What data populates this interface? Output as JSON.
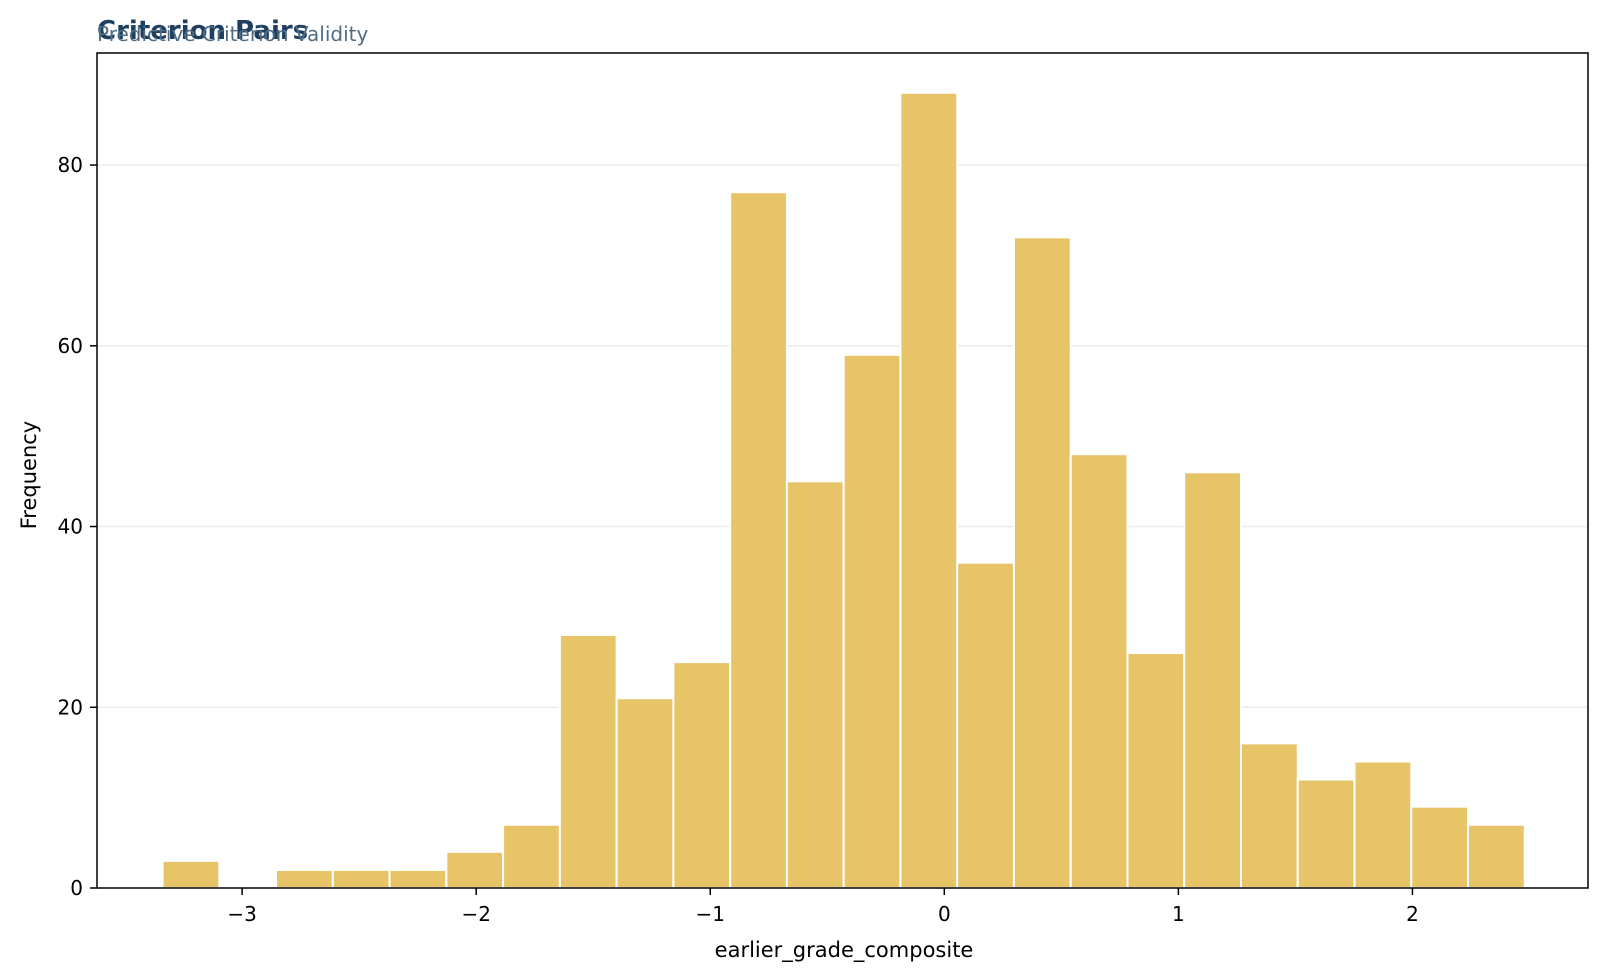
{
  "chart_data": {
    "type": "bar",
    "title": "Criterion Pairs",
    "subtitle": "Predictive Criterion Validity",
    "xlabel": "earlier_grade_composite",
    "ylabel": "Frequency",
    "xlim": [
      -3.62,
      2.75
    ],
    "ylim": [
      0,
      92.4
    ],
    "x_ticks": [
      -3,
      -2,
      -1,
      0,
      1,
      2
    ],
    "x_tick_labels": [
      "−3",
      "−2",
      "−1",
      "0",
      "1",
      "2"
    ],
    "y_ticks": [
      0,
      20,
      40,
      60,
      80
    ],
    "y_tick_labels": [
      "0",
      "20",
      "40",
      "60",
      "80"
    ],
    "grid": "y",
    "bar_color": "#e8c468",
    "title_color": "#1f3f5f",
    "subtitle_color": "#4f6d85",
    "bins": {
      "start": -3.34,
      "width": 0.2425
    },
    "values": [
      3,
      0,
      2,
      2,
      2,
      4,
      7,
      28,
      21,
      25,
      77,
      45,
      59,
      88,
      36,
      72,
      48,
      26,
      46,
      16,
      12,
      14,
      9,
      7
    ]
  }
}
